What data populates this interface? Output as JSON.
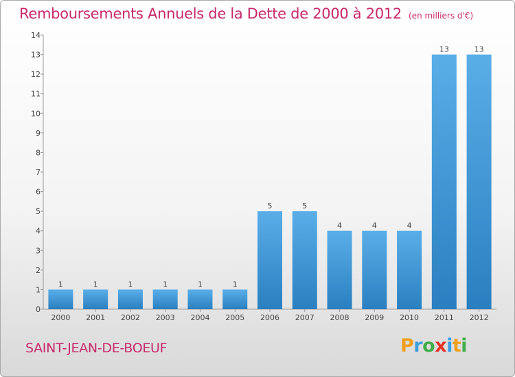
{
  "chart_data": {
    "type": "bar",
    "title": "Remboursements Annuels de la Dette de 2000 à 2012",
    "subtitle": "(en milliers d'€)",
    "categories": [
      "2000",
      "2001",
      "2002",
      "2003",
      "2004",
      "2005",
      "2006",
      "2007",
      "2008",
      "2009",
      "2010",
      "2011",
      "2012"
    ],
    "values": [
      1,
      1,
      1,
      1,
      1,
      1,
      5,
      5,
      4,
      4,
      4,
      13,
      13
    ],
    "ylim": [
      0,
      14
    ],
    "yticks": [
      0,
      1,
      2,
      3,
      4,
      5,
      6,
      7,
      8,
      9,
      10,
      11,
      12,
      13,
      14
    ],
    "xlabel": "",
    "ylabel": "",
    "grid": false,
    "bar_color_top": "#5aaee8",
    "bar_color_bottom": "#2a7fc0"
  },
  "footer": {
    "town": "SAINT-JEAN-DE-BOEUF",
    "brand_letters": [
      {
        "ch": "P",
        "color": "#f0a01e"
      },
      {
        "ch": "r",
        "color": "#3b9fe0"
      },
      {
        "ch": "o",
        "color": "#3fae4a"
      },
      {
        "ch": "x",
        "color": "#e6332a"
      },
      {
        "ch": "i",
        "color": "#3b9fe0"
      },
      {
        "ch": "t",
        "color": "#f0a01e"
      },
      {
        "ch": "i",
        "color": "#3fae4a"
      }
    ]
  }
}
